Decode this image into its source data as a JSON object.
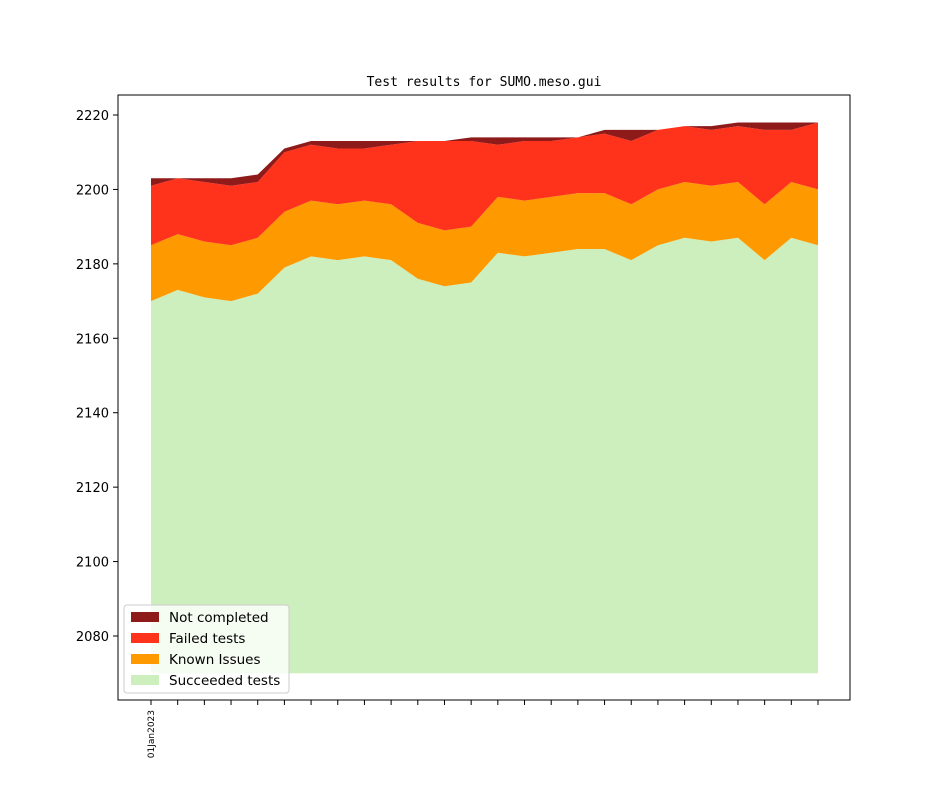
{
  "chart_data": {
    "type": "area",
    "stacked": true,
    "title": "Test results for SUMO.meso.gui",
    "xlabel": "",
    "ylabel": "",
    "ylim": [
      2065,
      2225
    ],
    "yticks": [
      2080,
      2100,
      2120,
      2140,
      2160,
      2180,
      2200,
      2220
    ],
    "x_tick_labels": [
      "01Jan2023"
    ],
    "baseline": 2070,
    "legend_position": "lower-left",
    "grid": false,
    "series": [
      {
        "name": "Succeeded tests",
        "color": "#cdeebd",
        "values": [
          2170,
          2173,
          2171,
          2170,
          2172,
          2179,
          2182,
          2181,
          2182,
          2181,
          2176,
          2174,
          2175,
          2183,
          2182,
          2183,
          2184,
          2184,
          2181,
          2185,
          2187,
          2186,
          2187,
          2181,
          2187,
          2185
        ]
      },
      {
        "name": "Known Issues",
        "color": "#fe9900",
        "values": [
          2185,
          2188,
          2186,
          2185,
          2187,
          2194,
          2197,
          2196,
          2197,
          2196,
          2191,
          2189,
          2190,
          2198,
          2197,
          2198,
          2199,
          2199,
          2196,
          2200,
          2202,
          2201,
          2202,
          2196,
          2202,
          2200
        ]
      },
      {
        "name": "Failed tests",
        "color": "#ff331c",
        "values": [
          2201,
          2203,
          2202,
          2201,
          2202,
          2210,
          2212,
          2211,
          2211,
          2212,
          2213,
          2213,
          2213,
          2212,
          2213,
          2213,
          2214,
          2215,
          2213,
          2216,
          2217,
          2216,
          2217,
          2216,
          2216,
          2218
        ]
      },
      {
        "name": "Not completed",
        "color": "#8f1a1a",
        "values": [
          2203,
          2203,
          2203,
          2203,
          2204,
          2211,
          2213,
          2213,
          2213,
          2213,
          2213,
          2213,
          2214,
          2214,
          2214,
          2214,
          2214,
          2216,
          2216,
          2216,
          2217,
          2217,
          2218,
          2218,
          2218,
          2218
        ]
      }
    ]
  }
}
